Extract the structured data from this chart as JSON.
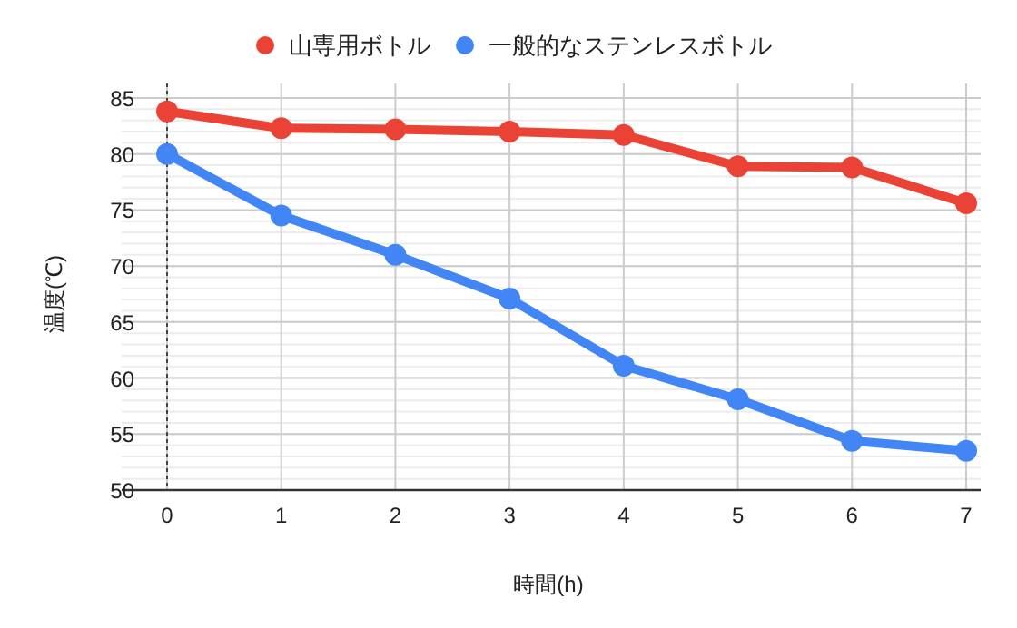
{
  "chart_data": {
    "type": "line",
    "xlabel": "時間(h)",
    "ylabel": "温度(℃)",
    "x": [
      0,
      1,
      2,
      3,
      4,
      5,
      6,
      7
    ],
    "series": [
      {
        "name": "山専用ボトル",
        "color": "#ea4335",
        "values": [
          83.8,
          82.3,
          82.2,
          82.0,
          81.7,
          78.9,
          78.8,
          75.6
        ]
      },
      {
        "name": "一般的なステンレスボトル",
        "color": "#4285f4",
        "values": [
          80.0,
          74.5,
          71.0,
          67.1,
          61.1,
          58.1,
          54.4,
          53.5
        ]
      }
    ],
    "xlim": [
      0,
      7
    ],
    "xticks": [
      0,
      1,
      2,
      3,
      4,
      5,
      6,
      7
    ],
    "ylim": [
      50,
      85
    ],
    "yticks": [
      50,
      55,
      60,
      65,
      70,
      75,
      80,
      85
    ],
    "grid": true,
    "legend": "top",
    "marker": "circle",
    "line_style": "solid"
  }
}
